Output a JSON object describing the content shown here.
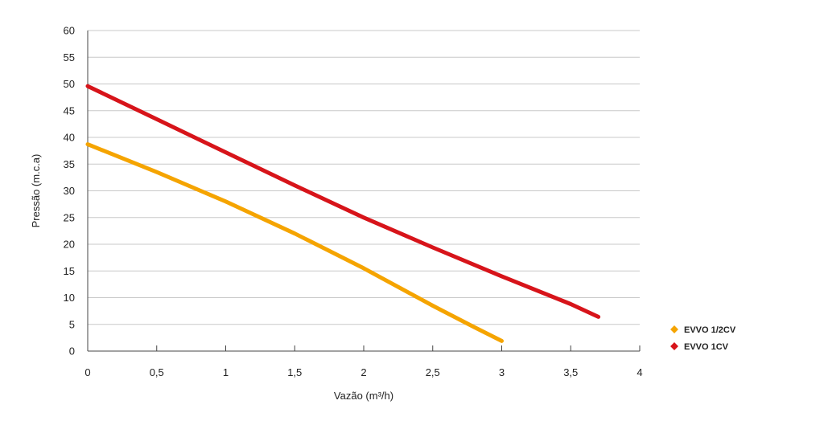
{
  "chart_data": {
    "type": "line",
    "title": "",
    "xlabel": "Vazão (m³/h)",
    "ylabel": "Pressão (m.c.a)",
    "xlim": [
      0,
      4
    ],
    "ylim": [
      0,
      60
    ],
    "x_ticks": [
      {
        "value": 0,
        "label": "0"
      },
      {
        "value": 0.5,
        "label": "0,5"
      },
      {
        "value": 1,
        "label": "1"
      },
      {
        "value": 1.5,
        "label": "1,5"
      },
      {
        "value": 2,
        "label": "2"
      },
      {
        "value": 2.5,
        "label": "2,5"
      },
      {
        "value": 3,
        "label": "3"
      },
      {
        "value": 3.5,
        "label": "3,5"
      },
      {
        "value": 4,
        "label": "4"
      }
    ],
    "y_ticks": [
      {
        "value": 0,
        "label": "0"
      },
      {
        "value": 5,
        "label": "5"
      },
      {
        "value": 10,
        "label": "10"
      },
      {
        "value": 15,
        "label": "15"
      },
      {
        "value": 20,
        "label": "20"
      },
      {
        "value": 25,
        "label": "25"
      },
      {
        "value": 30,
        "label": "30"
      },
      {
        "value": 35,
        "label": "35"
      },
      {
        "value": 40,
        "label": "40"
      },
      {
        "value": 45,
        "label": "45"
      },
      {
        "value": 50,
        "label": "50"
      },
      {
        "value": 55,
        "label": "55"
      },
      {
        "value": 60,
        "label": "60"
      }
    ],
    "grid": "horizontal",
    "legend_position": "right",
    "series": [
      {
        "name": "EVVO 1/2CV",
        "color": "#F5A400",
        "x": [
          0,
          0.5,
          1,
          1.5,
          2,
          2.5,
          2.8,
          3
        ],
        "y": [
          38.7,
          33.5,
          28,
          22,
          15.5,
          8.5,
          4.5,
          1.9
        ]
      },
      {
        "name": "EVVO 1CV",
        "color": "#D7141A",
        "x": [
          0,
          0.5,
          1,
          1.5,
          2,
          2.5,
          3,
          3.5,
          3.7
        ],
        "y": [
          49.6,
          43.4,
          37.2,
          31,
          25,
          19.4,
          14,
          8.8,
          6.4
        ]
      }
    ]
  }
}
